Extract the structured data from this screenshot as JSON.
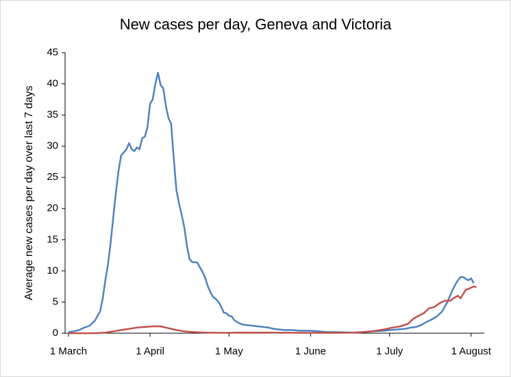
{
  "chart_data": {
    "type": "line",
    "title": "New cases per day, Geneva and Victoria",
    "y_label": "Average new cases per day over last 7 days",
    "xlim": [
      -1.3,
      158
    ],
    "xticks": [
      {
        "value": 0,
        "label": "1 March"
      },
      {
        "value": 31,
        "label": "1 April"
      },
      {
        "value": 61,
        "label": "1 May"
      },
      {
        "value": 92,
        "label": "1 June"
      },
      {
        "value": 122,
        "label": "1 July"
      },
      {
        "value": 153,
        "label": "1 August"
      }
    ],
    "ylim": [
      0,
      45
    ],
    "yticks": [
      0,
      5,
      10,
      15,
      20,
      25,
      30,
      35,
      40,
      45
    ],
    "grid": false,
    "series": [
      {
        "color": "#4f81bd",
        "x": [
          0,
          2,
          4,
          6,
          8,
          10,
          12,
          13,
          14,
          15,
          16,
          17,
          18,
          19,
          20,
          21,
          22,
          23,
          24,
          25,
          26,
          27,
          28,
          29,
          30,
          31,
          32,
          33,
          34,
          35,
          36,
          37,
          38,
          39,
          40,
          41,
          42,
          43,
          44,
          45,
          46,
          47,
          48,
          49,
          50,
          51,
          52,
          53,
          54,
          55,
          56,
          57,
          58,
          59,
          60,
          61,
          62,
          63,
          64,
          66,
          68,
          70,
          72,
          74,
          76,
          78,
          80,
          82,
          85,
          88,
          92,
          95,
          98,
          100,
          104,
          108,
          112,
          116,
          120,
          122,
          125,
          128,
          130,
          132,
          134,
          136,
          138,
          140,
          142,
          144,
          146,
          147,
          148,
          149,
          150,
          151,
          152,
          153,
          154
        ],
        "values": [
          0.2,
          0.3,
          0.5,
          0.9,
          1.2,
          2,
          3.5,
          5.5,
          8.5,
          11,
          14.5,
          18.5,
          22.5,
          26,
          28.5,
          29,
          29.5,
          30.5,
          29.5,
          29.2,
          29.8,
          29.5,
          31.3,
          31.5,
          33,
          36.8,
          37.5,
          40,
          41.8,
          39.8,
          39.3,
          36.5,
          34.5,
          33.6,
          28,
          23,
          20.8,
          19,
          17,
          14,
          11.9,
          11.4,
          11.4,
          11.3,
          10.5,
          9.8,
          8.8,
          7.5,
          6.5,
          5.8,
          5.5,
          5,
          4.3,
          3.3,
          3.2,
          2.8,
          2.7,
          2.1,
          1.8,
          1.4,
          1.3,
          1.2,
          1.1,
          1.0,
          0.9,
          0.7,
          0.6,
          0.5,
          0.5,
          0.4,
          0.4,
          0.3,
          0.2,
          0.2,
          0.15,
          0.1,
          0.2,
          0.3,
          0.4,
          0.5,
          0.6,
          0.7,
          0.9,
          1.0,
          1.3,
          1.8,
          2.2,
          2.7,
          3.5,
          5,
          7,
          7.8,
          8.5,
          9,
          9,
          8.7,
          8.5,
          8.8,
          8.0
        ]
      },
      {
        "color": "#c0504d",
        "x": [
          0,
          10,
          14,
          17,
          20,
          23,
          26,
          29,
          32,
          35,
          38,
          41,
          44,
          47,
          52,
          60,
          65,
          75,
          90,
          100,
          110,
          115,
          120,
          123,
          126,
          129,
          131,
          133,
          135,
          137,
          139,
          141,
          143,
          145,
          147,
          148,
          149,
          150,
          151,
          152,
          153,
          154,
          155
        ],
        "values": [
          0,
          0,
          0.1,
          0.3,
          0.5,
          0.7,
          0.9,
          1.0,
          1.1,
          1.1,
          0.8,
          0.5,
          0.3,
          0.2,
          0.1,
          0.05,
          0.1,
          0.1,
          0.05,
          0.05,
          0.1,
          0.3,
          0.6,
          0.9,
          1.1,
          1.5,
          2.3,
          2.8,
          3.2,
          4,
          4.2,
          4.8,
          5.2,
          5.2,
          5.8,
          6,
          5.6,
          6.3,
          7,
          7.1,
          7.3,
          7.5,
          7.4
        ]
      }
    ]
  }
}
